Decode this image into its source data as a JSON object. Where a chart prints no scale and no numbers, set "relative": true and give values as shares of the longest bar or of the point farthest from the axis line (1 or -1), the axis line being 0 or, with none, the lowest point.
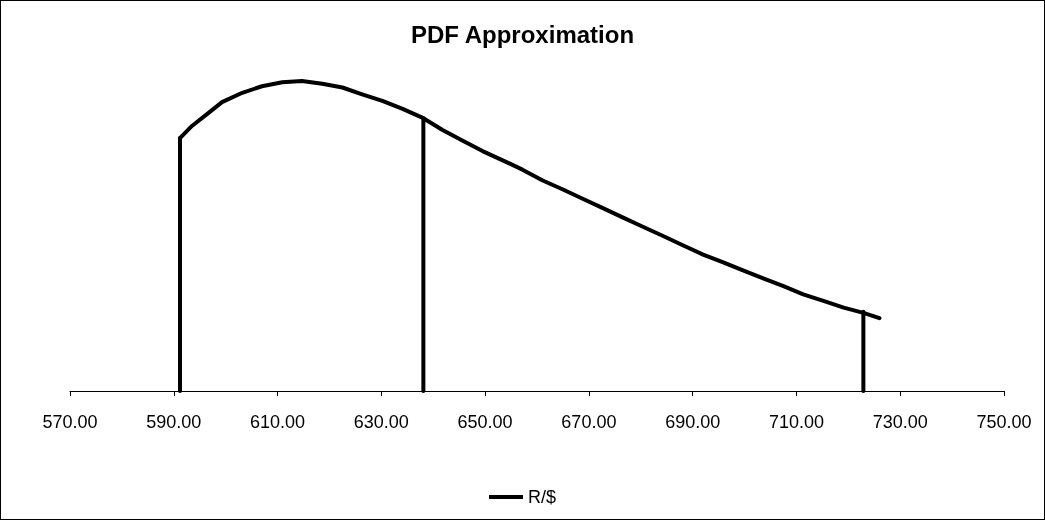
{
  "chart_data": {
    "type": "line",
    "title": "PDF Approximation",
    "relative": true,
    "xlim": [
      570,
      750
    ],
    "xticks": [
      {
        "value": 570,
        "label": "570.00"
      },
      {
        "value": 590,
        "label": "590.00"
      },
      {
        "value": 610,
        "label": "610.00"
      },
      {
        "value": 630,
        "label": "630.00"
      },
      {
        "value": 650,
        "label": "650.00"
      },
      {
        "value": 670,
        "label": "670.00"
      },
      {
        "value": 690,
        "label": "690.00"
      },
      {
        "value": 710,
        "label": "710.00"
      },
      {
        "value": 730,
        "label": "730.00"
      },
      {
        "value": 750,
        "label": "750.00"
      }
    ],
    "legend": "bottom",
    "grid": false,
    "marker": "none",
    "line_style": "solid",
    "series": [
      {
        "name": "R/$",
        "color": "#000000",
        "x": [
          591.2,
          593.5,
          596.4,
          599.3,
          603.2,
          607,
          610.9,
          614.7,
          618.6,
          622.5,
          626.3,
          630.2,
          634.1,
          638.1,
          641.8,
          645.6,
          649.5,
          653.4,
          657.2,
          661.1,
          665,
          668.8,
          672.7,
          676.5,
          680.4,
          684.3,
          688.1,
          692,
          695.9,
          699.7,
          703.6,
          707.5,
          711.3,
          715.2,
          719.1,
          722.9,
          726
        ],
        "values": [
          0.816,
          0.855,
          0.893,
          0.932,
          0.962,
          0.983,
          0.996,
          1,
          0.991,
          0.979,
          0.957,
          0.936,
          0.91,
          0.88,
          0.842,
          0.808,
          0.774,
          0.744,
          0.714,
          0.679,
          0.65,
          0.62,
          0.59,
          0.56,
          0.53,
          0.5,
          0.47,
          0.44,
          0.415,
          0.389,
          0.363,
          0.338,
          0.312,
          0.291,
          0.269,
          0.252,
          0.235
        ]
      },
      {
        "type": "line",
        "color": "#000000",
        "x": [
          591.2,
          591.2
        ],
        "values": [
          0,
          0.816
        ]
      },
      {
        "type": "line",
        "color": "#000000",
        "x": [
          638.1,
          638.1
        ],
        "values": [
          0,
          0.88
        ]
      },
      {
        "type": "line",
        "color": "#000000",
        "x": [
          722.9,
          722.9
        ],
        "values": [
          0,
          0.256
        ]
      }
    ]
  }
}
